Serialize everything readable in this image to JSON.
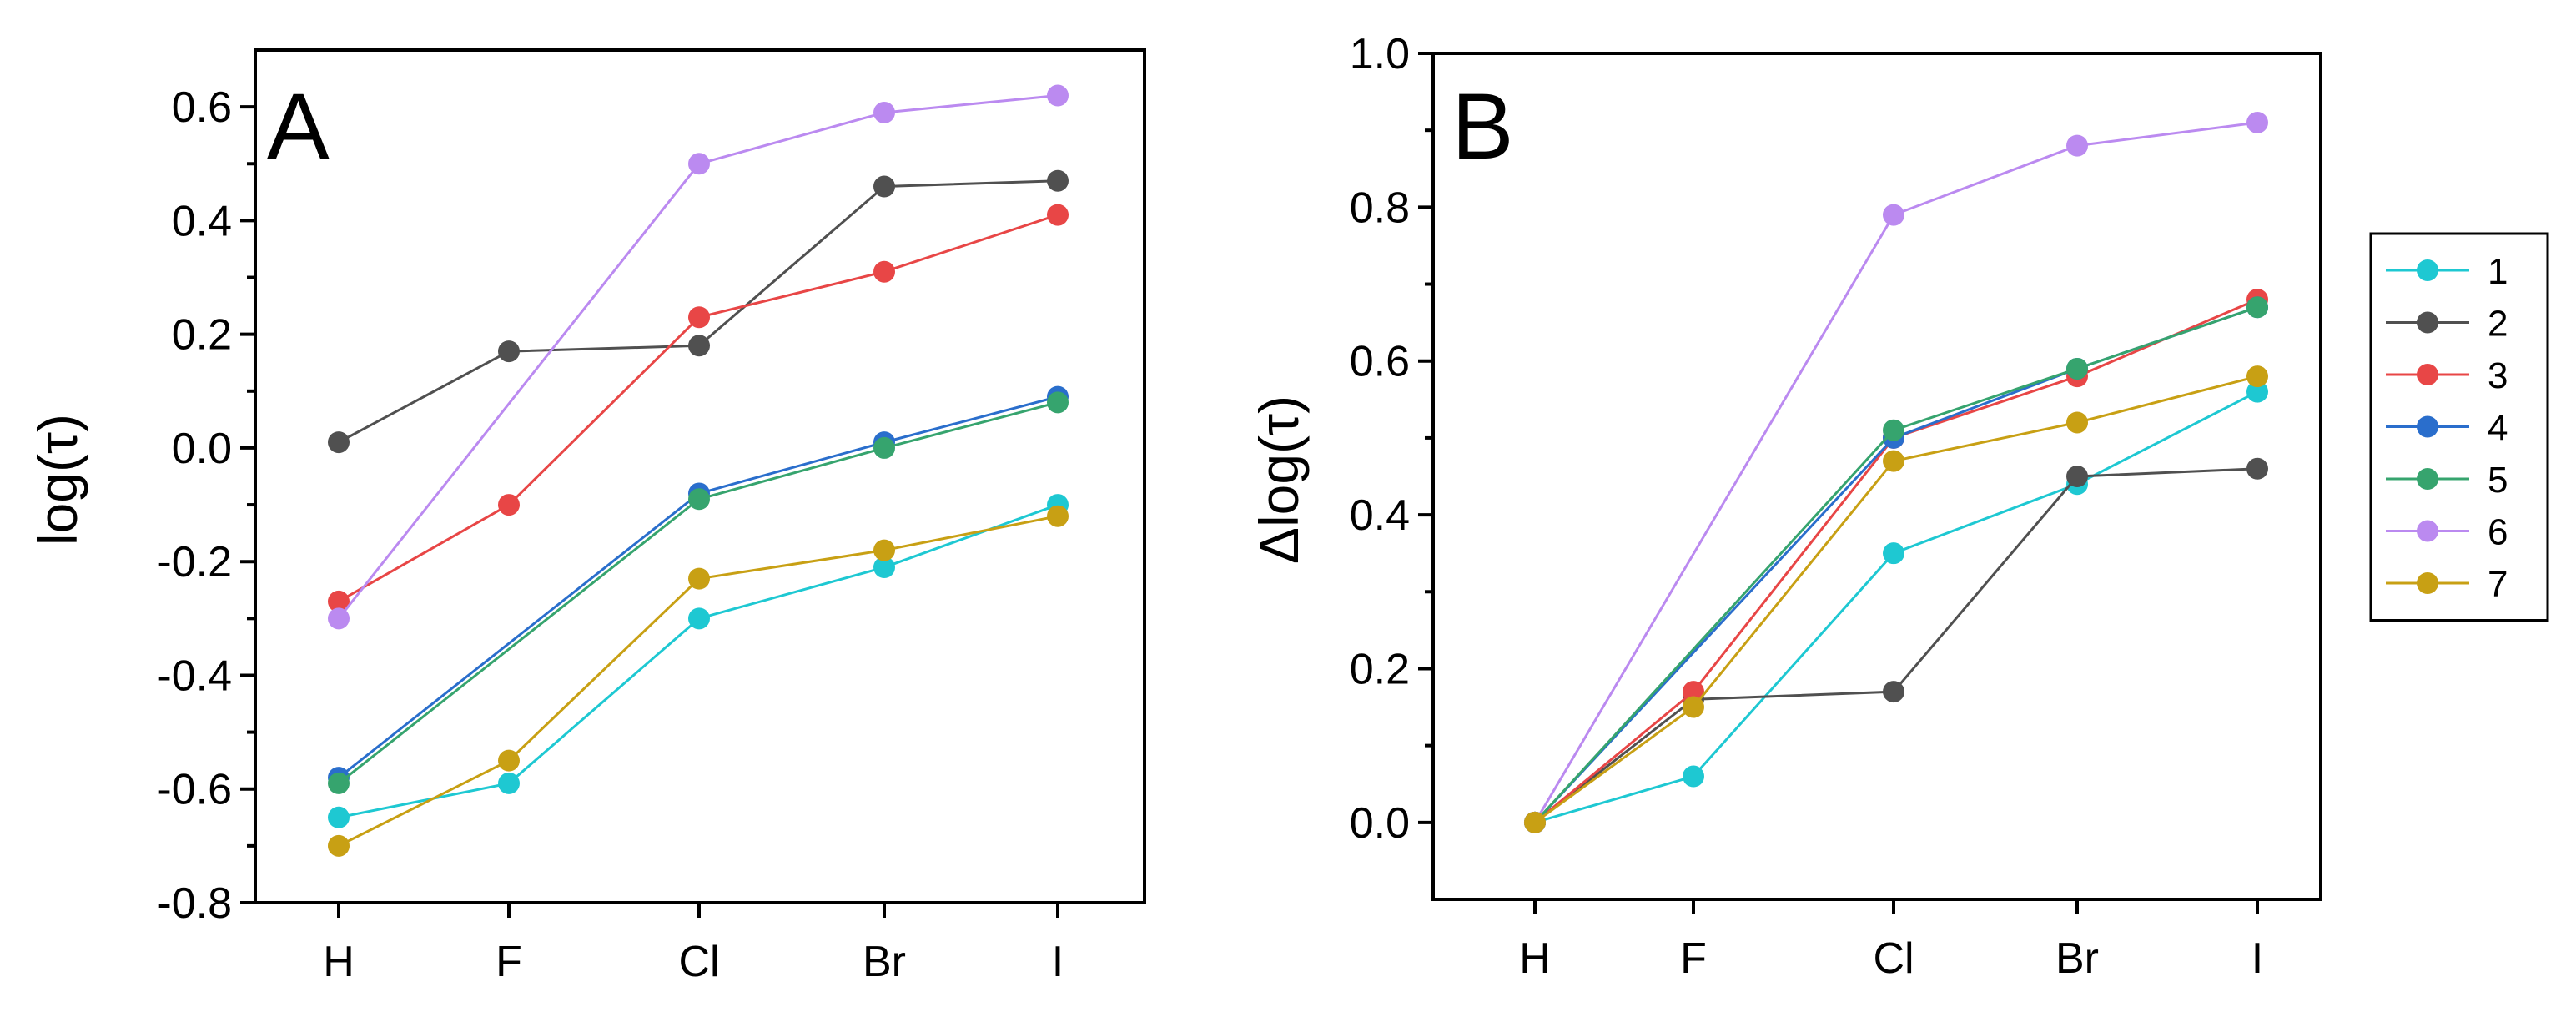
{
  "figure": {
    "legend": {
      "entries": [
        "1",
        "2",
        "3",
        "4",
        "5",
        "6",
        "7"
      ],
      "placement": "right of panel B"
    }
  },
  "colors": {
    "1": "#1ec8d2",
    "2": "#505050",
    "3": "#e84646",
    "4": "#2a6ecc",
    "5": "#36a46e",
    "6": "#bb8af0",
    "7": "#c8a014"
  },
  "chart_data": [
    {
      "type": "line",
      "panel_label": "A",
      "title": "",
      "xlabel": "",
      "ylabel": "log(τ)",
      "categories": [
        "H",
        "F",
        "Cl",
        "Br",
        "I"
      ],
      "ylim": [
        -0.8,
        0.7
      ],
      "yticks": [
        -0.8,
        -0.6,
        -0.4,
        -0.2,
        0.0,
        0.2,
        0.4,
        0.6
      ],
      "ytick_labels": [
        "-0.8",
        "-0.6",
        "-0.4",
        "-0.2",
        "0.0",
        "0.2",
        "0.4",
        "0.6"
      ],
      "series": [
        {
          "name": "1",
          "values": [
            -0.65,
            -0.59,
            -0.3,
            -0.21,
            -0.1
          ]
        },
        {
          "name": "2",
          "values": [
            0.01,
            0.17,
            0.18,
            0.46,
            0.47
          ]
        },
        {
          "name": "3",
          "values": [
            -0.27,
            -0.1,
            0.23,
            0.31,
            0.41
          ]
        },
        {
          "name": "4",
          "values": [
            -0.58,
            null,
            -0.08,
            0.01,
            0.09
          ]
        },
        {
          "name": "5",
          "values": [
            -0.59,
            null,
            -0.09,
            0.0,
            0.08
          ]
        },
        {
          "name": "6",
          "values": [
            -0.3,
            null,
            0.5,
            0.59,
            0.62
          ]
        },
        {
          "name": "7",
          "values": [
            -0.7,
            -0.55,
            -0.23,
            -0.18,
            -0.12
          ]
        }
      ]
    },
    {
      "type": "line",
      "panel_label": "B",
      "title": "",
      "xlabel": "",
      "ylabel": "Δlog(τ)",
      "categories": [
        "H",
        "F",
        "Cl",
        "Br",
        "I"
      ],
      "ylim": [
        -0.1,
        1.0
      ],
      "yticks": [
        0.0,
        0.2,
        0.4,
        0.6,
        0.8,
        1.0
      ],
      "ytick_labels": [
        "0.0",
        "0.2",
        "0.4",
        "0.6",
        "0.8",
        "1.0"
      ],
      "series": [
        {
          "name": "1",
          "values": [
            0.0,
            0.06,
            0.35,
            0.44,
            0.56
          ]
        },
        {
          "name": "2",
          "values": [
            0.0,
            0.16,
            0.17,
            0.45,
            0.46
          ]
        },
        {
          "name": "3",
          "values": [
            0.0,
            0.17,
            0.5,
            0.58,
            0.68
          ]
        },
        {
          "name": "4",
          "values": [
            0.0,
            null,
            0.5,
            0.59,
            0.67
          ]
        },
        {
          "name": "5",
          "values": [
            0.0,
            null,
            0.51,
            0.59,
            0.67
          ]
        },
        {
          "name": "6",
          "values": [
            0.0,
            null,
            0.79,
            0.88,
            0.91
          ]
        },
        {
          "name": "7",
          "values": [
            0.0,
            0.15,
            0.47,
            0.52,
            0.58
          ]
        }
      ]
    }
  ]
}
